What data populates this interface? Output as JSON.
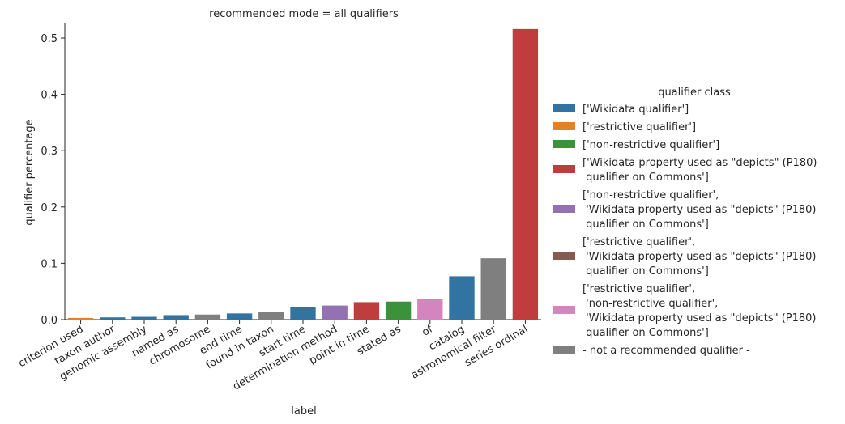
{
  "chart_data": {
    "type": "bar",
    "title": "recommended mode = all qualifiers",
    "xlabel": "label",
    "ylabel": "qualifier percentage",
    "ylim": [
      0,
      0.54
    ],
    "yticks": [
      0.0,
      0.1,
      0.2,
      0.3,
      0.4,
      0.5
    ],
    "ytick_labels": [
      "0.0",
      "0.1",
      "0.2",
      "0.3",
      "0.4",
      "0.5"
    ],
    "grid": false,
    "legend_placement": "right",
    "legend_title": "qualifier class",
    "legend": [
      {
        "lines": [
          "['Wikidata qualifier']"
        ],
        "color": "#3274a1"
      },
      {
        "lines": [
          "['restrictive qualifier']"
        ],
        "color": "#e1812c"
      },
      {
        "lines": [
          "['non-restrictive qualifier']"
        ],
        "color": "#3a923a"
      },
      {
        "lines": [
          "['Wikidata property used as \"depicts\" (P180)",
          " qualifier on Commons']"
        ],
        "color": "#c03d3e"
      },
      {
        "lines": [
          "['non-restrictive qualifier',",
          " 'Wikidata property used as \"depicts\" (P180)",
          " qualifier on Commons']"
        ],
        "color": "#9372b2"
      },
      {
        "lines": [
          "['restrictive qualifier',",
          " 'Wikidata property used as \"depicts\" (P180)",
          " qualifier on Commons']"
        ],
        "color": "#845b53"
      },
      {
        "lines": [
          "['restrictive qualifier',",
          " 'non-restrictive qualifier',",
          " 'Wikidata property used as \"depicts\" (P180)",
          " qualifier on Commons']"
        ],
        "color": "#d684bd"
      },
      {
        "lines": [
          "- not a recommended qualifier -"
        ],
        "color": "#7f7f7f"
      }
    ],
    "categories": [
      "criterion used",
      "taxon author",
      "genomic assembly",
      "named as",
      "chromosome",
      "end time",
      "found in taxon",
      "start time",
      "determination method",
      "point in time",
      "stated as",
      "of",
      "catalog",
      "astronomical filter",
      "series ordinal"
    ],
    "values": [
      0.003,
      0.004,
      0.005,
      0.008,
      0.009,
      0.011,
      0.014,
      0.022,
      0.025,
      0.031,
      0.032,
      0.036,
      0.077,
      0.109,
      0.516
    ],
    "colors": [
      "#e1812c",
      "#3274a1",
      "#3274a1",
      "#3274a1",
      "#7f7f7f",
      "#3274a1",
      "#7f7f7f",
      "#3274a1",
      "#9372b2",
      "#c03d3e",
      "#3a923a",
      "#d684bd",
      "#3274a1",
      "#7f7f7f",
      "#c03d3e"
    ]
  }
}
